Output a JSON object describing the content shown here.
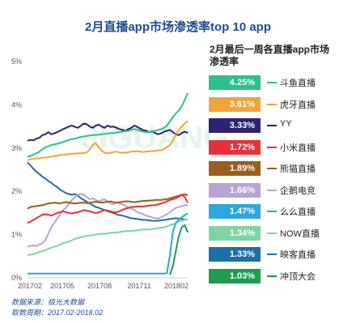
{
  "chart_data": {
    "type": "line",
    "title": "2月直播app市场渗透率top 10 app",
    "legend_title": "2月最后一周各直播app市场渗透率",
    "legend_position": "right",
    "x_labels": [
      "201702",
      "201705",
      "201708",
      "201711",
      "201802"
    ],
    "y_ticks": [
      "0%",
      "1%",
      "2%",
      "3%",
      "4%",
      "5%"
    ],
    "ylim": [
      0,
      5
    ],
    "x_count": 55,
    "series": [
      {
        "name": "斗鱼直播",
        "value_label": "4.25%",
        "color": "#2dbf8f",
        "values": [
          2.78,
          2.8,
          2.83,
          2.86,
          2.9,
          2.95,
          3.0,
          3.02,
          3.05,
          3.07,
          3.08,
          3.1,
          3.12,
          3.15,
          3.17,
          3.19,
          3.2,
          3.22,
          3.24,
          3.25,
          3.26,
          3.27,
          3.28,
          3.28,
          3.29,
          3.3,
          3.31,
          3.32,
          3.33,
          3.33,
          3.34,
          3.35,
          3.36,
          3.37,
          3.38,
          3.4,
          3.42,
          3.4,
          3.38,
          3.36,
          3.35,
          3.35,
          3.36,
          3.38,
          3.4,
          3.42,
          3.45,
          3.5,
          3.6,
          3.7,
          3.78,
          3.85,
          3.95,
          4.1,
          4.25
        ]
      },
      {
        "name": "虎牙直播",
        "value_label": "3.61%",
        "color": "#f1a43a",
        "values": [
          2.7,
          2.72,
          2.73,
          2.75,
          2.74,
          2.76,
          2.76,
          2.77,
          2.78,
          2.8,
          2.8,
          2.82,
          2.83,
          2.83,
          2.84,
          2.85,
          2.85,
          2.86,
          2.86,
          2.87,
          2.88,
          2.95,
          3.05,
          3.1,
          3.0,
          2.92,
          2.87,
          2.86,
          2.87,
          2.89,
          2.9,
          2.88,
          2.87,
          2.88,
          2.88,
          2.9,
          2.9,
          2.91,
          2.9,
          2.89,
          2.9,
          2.91,
          2.91,
          2.92,
          2.93,
          2.93,
          2.96,
          3.0,
          3.05,
          3.15,
          3.3,
          3.4,
          3.48,
          3.55,
          3.61
        ]
      },
      {
        "name": "YY",
        "value_label": "3.33%",
        "color": "#2d2373",
        "values": [
          3.15,
          3.17,
          3.16,
          3.2,
          3.22,
          3.28,
          3.3,
          3.35,
          3.3,
          3.32,
          3.35,
          3.38,
          3.42,
          3.45,
          3.48,
          3.5,
          3.47,
          3.45,
          3.5,
          3.55,
          3.53,
          3.48,
          3.45,
          3.5,
          3.52,
          3.48,
          3.45,
          3.5,
          3.47,
          3.48,
          3.45,
          3.42,
          3.4,
          3.38,
          3.42,
          3.45,
          3.5,
          3.47,
          3.43,
          3.4,
          3.38,
          3.35,
          3.37,
          3.33,
          3.3,
          3.32,
          3.36,
          3.38,
          3.4,
          3.35,
          3.3,
          3.28,
          3.33,
          3.36,
          3.33
        ]
      },
      {
        "name": "小米直播",
        "value_label": "1.72%",
        "color": "#e5323a",
        "values": [
          1.25,
          1.28,
          1.32,
          1.36,
          1.4,
          1.44,
          1.45,
          1.44,
          1.42,
          1.45,
          1.48,
          1.5,
          1.52,
          1.5,
          1.48,
          1.47,
          1.49,
          1.5,
          1.52,
          1.55,
          1.53,
          1.52,
          1.5,
          1.48,
          1.5,
          1.52,
          1.55,
          1.54,
          1.52,
          1.5,
          1.5,
          1.52,
          1.55,
          1.58,
          1.6,
          1.62,
          1.62,
          1.63,
          1.63,
          1.63,
          1.64,
          1.65,
          1.66,
          1.66,
          1.68,
          1.7,
          1.72,
          1.75,
          1.78,
          1.8,
          1.82,
          1.86,
          1.9,
          1.85,
          1.72
        ]
      },
      {
        "name": "熊猫直播",
        "value_label": "1.89%",
        "color": "#9b5c1e",
        "values": [
          1.58,
          1.62,
          1.63,
          1.64,
          1.65,
          1.66,
          1.68,
          1.7,
          1.71,
          1.72,
          1.71,
          1.7,
          1.72,
          1.73,
          1.72,
          1.71,
          1.7,
          1.71,
          1.72,
          1.72,
          1.71,
          1.72,
          1.73,
          1.74,
          1.73,
          1.72,
          1.73,
          1.74,
          1.75,
          1.73,
          1.72,
          1.73,
          1.74,
          1.75,
          1.75,
          1.74,
          1.73,
          1.74,
          1.75,
          1.76,
          1.76,
          1.77,
          1.77,
          1.78,
          1.78,
          1.78,
          1.79,
          1.8,
          1.82,
          1.84,
          1.86,
          1.88,
          1.9,
          1.91,
          1.89
        ]
      },
      {
        "name": "企鹅电竞",
        "value_label": "1.66%",
        "color": "#b7a3d6",
        "values": [
          0.7,
          0.72,
          0.73,
          0.72,
          0.75,
          0.78,
          0.85,
          1.0,
          1.15,
          1.25,
          1.35,
          1.45,
          1.55,
          1.6,
          1.7,
          1.78,
          1.85,
          1.9,
          1.92,
          1.9,
          1.85,
          1.8,
          1.82,
          1.78,
          1.75,
          1.78,
          1.8,
          1.75,
          1.7,
          1.68,
          1.72,
          1.7,
          1.68,
          1.65,
          1.6,
          1.58,
          1.55,
          1.5,
          1.48,
          1.45,
          1.42,
          1.4,
          1.38,
          1.36,
          1.35,
          1.38,
          1.42,
          1.45,
          1.5,
          1.55,
          1.6,
          1.62,
          1.64,
          1.66,
          1.66
        ]
      },
      {
        "name": "么么直播",
        "value_label": "1.47%",
        "color": "#2ba6de",
        "values": [
          0.08,
          0.08,
          0.08,
          0.08,
          0.08,
          0.08,
          0.08,
          0.08,
          0.08,
          0.08,
          0.08,
          0.08,
          0.08,
          0.08,
          0.08,
          0.08,
          0.08,
          0.08,
          0.08,
          0.08,
          0.08,
          0.08,
          0.08,
          0.08,
          0.08,
          0.08,
          0.08,
          0.08,
          0.08,
          0.08,
          0.08,
          0.08,
          0.08,
          0.08,
          0.08,
          0.08,
          0.08,
          0.08,
          0.08,
          0.08,
          0.08,
          0.08,
          0.08,
          0.08,
          0.08,
          0.08,
          0.08,
          0.09,
          0.5,
          1.05,
          1.25,
          1.33,
          1.38,
          1.43,
          1.47
        ]
      },
      {
        "name": "NOW直播",
        "value_label": "1.34%",
        "color": "#7fd4a4",
        "values": [
          0.5,
          0.52,
          0.53,
          0.55,
          0.58,
          0.6,
          0.62,
          0.65,
          0.68,
          0.7,
          0.72,
          0.75,
          0.78,
          0.8,
          0.82,
          0.85,
          0.88,
          0.9,
          0.92,
          0.94,
          0.95,
          0.96,
          0.97,
          0.98,
          0.99,
          1.0,
          1.0,
          1.01,
          1.02,
          1.03,
          1.03,
          1.04,
          1.05,
          1.06,
          1.06,
          1.07,
          1.07,
          1.08,
          1.09,
          1.1,
          1.1,
          1.1,
          1.11,
          1.12,
          1.13,
          1.14,
          1.15,
          1.17,
          1.2,
          1.22,
          1.25,
          1.28,
          1.3,
          1.32,
          1.34
        ]
      },
      {
        "name": "映客直播",
        "value_label": "1.33%",
        "color": "#1d6fa5",
        "values": [
          2.65,
          2.58,
          2.5,
          2.43,
          2.38,
          2.32,
          2.28,
          2.22,
          2.18,
          2.12,
          2.08,
          2.02,
          1.98,
          1.94,
          1.92,
          1.9,
          1.92,
          1.88,
          1.82,
          1.78,
          1.74,
          1.7,
          1.66,
          1.62,
          1.6,
          1.57,
          1.55,
          1.52,
          1.5,
          1.48,
          1.45,
          1.43,
          1.42,
          1.4,
          1.38,
          1.36,
          1.35,
          1.34,
          1.33,
          1.32,
          1.32,
          1.31,
          1.3,
          1.3,
          1.3,
          1.31,
          1.32,
          1.33,
          1.34,
          1.35,
          1.36,
          1.35,
          1.34,
          1.33,
          1.33
        ]
      },
      {
        "name": "冲顶大会",
        "value_label": "1.03%",
        "color": "#1f9c4f",
        "values": [
          null,
          null,
          null,
          null,
          null,
          null,
          null,
          null,
          null,
          null,
          null,
          null,
          null,
          null,
          null,
          null,
          null,
          null,
          null,
          null,
          null,
          null,
          null,
          null,
          null,
          null,
          null,
          null,
          null,
          null,
          null,
          null,
          null,
          null,
          null,
          null,
          null,
          null,
          null,
          null,
          null,
          null,
          null,
          null,
          null,
          null,
          null,
          null,
          0.05,
          0.25,
          0.6,
          0.95,
          1.15,
          1.2,
          1.03
        ]
      }
    ]
  },
  "watermark": "JIGUANG",
  "footer": {
    "source": "数据来源：极光大数据",
    "period": "取数周期：2017.02-2018.02"
  }
}
